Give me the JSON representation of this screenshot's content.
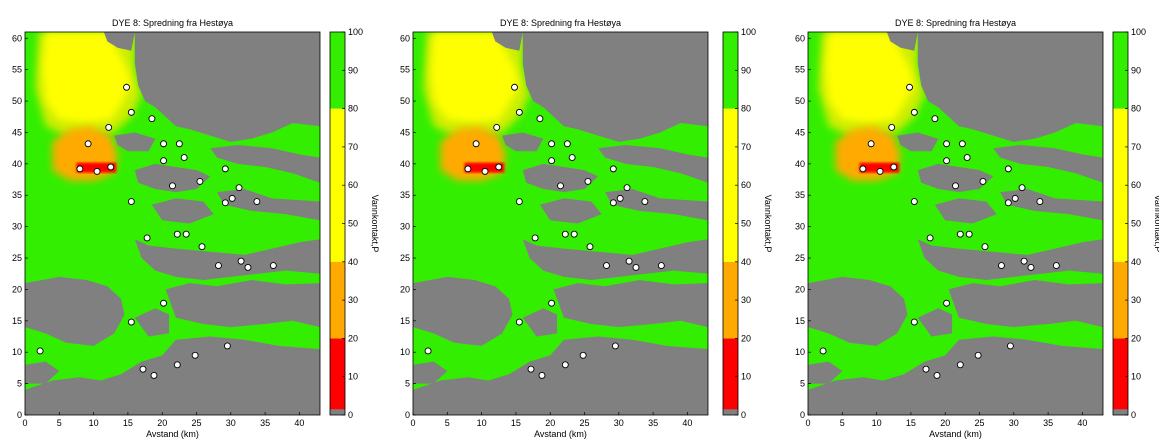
{
  "colors": {
    "land": "#808080",
    "green": "#33ee00",
    "yellow_green": "#ccee00",
    "yellow": "#ffff00",
    "orange": "#ffaa00",
    "red": "#ff0000",
    "station_fill": "#ffffff",
    "station_stroke": "#000000"
  },
  "chart_data": [
    {
      "type": "heatmap",
      "title": "DYE 8:  Spredning fra Hestøya",
      "xlabel": "Avstand (km)",
      "ylabel": "",
      "xlim": [
        0,
        43
      ],
      "ylim": [
        0,
        61
      ],
      "xticks": [
        "0",
        "5",
        "10",
        "15",
        "20",
        "25",
        "30",
        "35",
        "40"
      ],
      "yticks": [
        "0",
        "5",
        "10",
        "15",
        "20",
        "25",
        "30",
        "35",
        "40",
        "45",
        "50",
        "55",
        "60"
      ],
      "colorbar": {
        "label": "Vannkontakt,P",
        "range": [
          0,
          100
        ],
        "ticks": [
          "0",
          "10",
          "20",
          "30",
          "40",
          "50",
          "60",
          "70",
          "80",
          "90",
          "100"
        ],
        "bands": [
          {
            "from": 0,
            "to": 20,
            "color": "#ff0000"
          },
          {
            "from": 20,
            "to": 40,
            "color": "#ffaa00"
          },
          {
            "from": 40,
            "to": 80,
            "color": "#ffff00"
          },
          {
            "from": 80,
            "to": 100,
            "color": "#33ee00"
          }
        ]
      },
      "stations": [
        {
          "x": 14.8,
          "y": 52.2
        },
        {
          "x": 15.5,
          "y": 48.2
        },
        {
          "x": 18.5,
          "y": 47.2
        },
        {
          "x": 12.2,
          "y": 45.8
        },
        {
          "x": 9.2,
          "y": 43.2
        },
        {
          "x": 20.2,
          "y": 43.2
        },
        {
          "x": 22.5,
          "y": 43.2
        },
        {
          "x": 23.2,
          "y": 41.0
        },
        {
          "x": 20.2,
          "y": 40.5
        },
        {
          "x": 8.0,
          "y": 39.2
        },
        {
          "x": 10.5,
          "y": 38.8
        },
        {
          "x": 12.5,
          "y": 39.5
        },
        {
          "x": 29.2,
          "y": 39.2
        },
        {
          "x": 25.5,
          "y": 37.2
        },
        {
          "x": 21.5,
          "y": 36.5
        },
        {
          "x": 31.2,
          "y": 36.2
        },
        {
          "x": 15.5,
          "y": 34.0
        },
        {
          "x": 29.2,
          "y": 33.8
        },
        {
          "x": 30.2,
          "y": 34.5
        },
        {
          "x": 33.8,
          "y": 34.0
        },
        {
          "x": 22.2,
          "y": 28.8
        },
        {
          "x": 23.5,
          "y": 28.8
        },
        {
          "x": 17.8,
          "y": 28.2
        },
        {
          "x": 25.8,
          "y": 26.8
        },
        {
          "x": 31.5,
          "y": 24.5
        },
        {
          "x": 28.2,
          "y": 23.8
        },
        {
          "x": 32.5,
          "y": 23.5
        },
        {
          "x": 36.2,
          "y": 23.8
        },
        {
          "x": 20.2,
          "y": 17.8
        },
        {
          "x": 15.5,
          "y": 14.8
        },
        {
          "x": 29.5,
          "y": 11.0
        },
        {
          "x": 2.2,
          "y": 10.2
        },
        {
          "x": 24.8,
          "y": 9.5
        },
        {
          "x": 22.2,
          "y": 8.0
        },
        {
          "x": 17.2,
          "y": 7.3
        },
        {
          "x": 18.8,
          "y": 6.3
        }
      ]
    },
    {
      "type": "heatmap",
      "title": "DYE 8:  Spredning fra Hestøya",
      "xlabel": "Avstand (km)",
      "ylabel": "",
      "xlim": [
        0,
        43
      ],
      "ylim": [
        0,
        61
      ],
      "xticks": [
        "0",
        "5",
        "10",
        "15",
        "20",
        "25",
        "30",
        "35",
        "40"
      ],
      "yticks": [
        "0",
        "5",
        "10",
        "15",
        "20",
        "25",
        "30",
        "35",
        "40",
        "45",
        "50",
        "55",
        "60"
      ],
      "colorbar": {
        "label": "Vannkontakt,P",
        "range": [
          0,
          100
        ],
        "ticks": [
          "0",
          "10",
          "20",
          "30",
          "40",
          "50",
          "60",
          "70",
          "80",
          "90",
          "100"
        ],
        "bands": [
          {
            "from": 0,
            "to": 20,
            "color": "#ff0000"
          },
          {
            "from": 20,
            "to": 40,
            "color": "#ffaa00"
          },
          {
            "from": 40,
            "to": 80,
            "color": "#ffff00"
          },
          {
            "from": 80,
            "to": 100,
            "color": "#33ee00"
          }
        ]
      },
      "stations": [
        {
          "x": 14.8,
          "y": 52.2
        },
        {
          "x": 15.5,
          "y": 48.2
        },
        {
          "x": 18.5,
          "y": 47.2
        },
        {
          "x": 12.2,
          "y": 45.8
        },
        {
          "x": 9.2,
          "y": 43.2
        },
        {
          "x": 20.2,
          "y": 43.2
        },
        {
          "x": 22.5,
          "y": 43.2
        },
        {
          "x": 23.2,
          "y": 41.0
        },
        {
          "x": 20.2,
          "y": 40.5
        },
        {
          "x": 8.0,
          "y": 39.2
        },
        {
          "x": 10.5,
          "y": 38.8
        },
        {
          "x": 12.5,
          "y": 39.5
        },
        {
          "x": 29.2,
          "y": 39.2
        },
        {
          "x": 25.5,
          "y": 37.2
        },
        {
          "x": 21.5,
          "y": 36.5
        },
        {
          "x": 31.2,
          "y": 36.2
        },
        {
          "x": 15.5,
          "y": 34.0
        },
        {
          "x": 29.2,
          "y": 33.8
        },
        {
          "x": 30.2,
          "y": 34.5
        },
        {
          "x": 33.8,
          "y": 34.0
        },
        {
          "x": 22.2,
          "y": 28.8
        },
        {
          "x": 23.5,
          "y": 28.8
        },
        {
          "x": 17.8,
          "y": 28.2
        },
        {
          "x": 25.8,
          "y": 26.8
        },
        {
          "x": 31.5,
          "y": 24.5
        },
        {
          "x": 28.2,
          "y": 23.8
        },
        {
          "x": 32.5,
          "y": 23.5
        },
        {
          "x": 36.2,
          "y": 23.8
        },
        {
          "x": 20.2,
          "y": 17.8
        },
        {
          "x": 15.5,
          "y": 14.8
        },
        {
          "x": 29.5,
          "y": 11.0
        },
        {
          "x": 2.2,
          "y": 10.2
        },
        {
          "x": 24.8,
          "y": 9.5
        },
        {
          "x": 22.2,
          "y": 8.0
        },
        {
          "x": 17.2,
          "y": 7.3
        },
        {
          "x": 18.8,
          "y": 6.3
        }
      ]
    },
    {
      "type": "heatmap",
      "title": "DYE 8:  Spredning fra Hestøya",
      "xlabel": "Avstand (km)",
      "ylabel": "",
      "xlim": [
        0,
        43
      ],
      "ylim": [
        0,
        61
      ],
      "xticks": [
        "0",
        "5",
        "10",
        "15",
        "20",
        "25",
        "30",
        "35",
        "40"
      ],
      "yticks": [
        "0",
        "5",
        "10",
        "15",
        "20",
        "25",
        "30",
        "35",
        "40",
        "45",
        "50",
        "55",
        "60"
      ],
      "colorbar": {
        "label": "Vannkontakt,P",
        "range": [
          0,
          100
        ],
        "ticks": [
          "0",
          "10",
          "20",
          "30",
          "40",
          "50",
          "60",
          "70",
          "80",
          "90",
          "100"
        ],
        "bands": [
          {
            "from": 0,
            "to": 20,
            "color": "#ff0000"
          },
          {
            "from": 20,
            "to": 40,
            "color": "#ffaa00"
          },
          {
            "from": 40,
            "to": 80,
            "color": "#ffff00"
          },
          {
            "from": 80,
            "to": 100,
            "color": "#33ee00"
          }
        ]
      },
      "stations": [
        {
          "x": 14.8,
          "y": 52.2
        },
        {
          "x": 15.5,
          "y": 48.2
        },
        {
          "x": 18.5,
          "y": 47.2
        },
        {
          "x": 12.2,
          "y": 45.8
        },
        {
          "x": 9.2,
          "y": 43.2
        },
        {
          "x": 20.2,
          "y": 43.2
        },
        {
          "x": 22.5,
          "y": 43.2
        },
        {
          "x": 23.2,
          "y": 41.0
        },
        {
          "x": 20.2,
          "y": 40.5
        },
        {
          "x": 8.0,
          "y": 39.2
        },
        {
          "x": 10.5,
          "y": 38.8
        },
        {
          "x": 12.5,
          "y": 39.5
        },
        {
          "x": 29.2,
          "y": 39.2
        },
        {
          "x": 25.5,
          "y": 37.2
        },
        {
          "x": 21.5,
          "y": 36.5
        },
        {
          "x": 31.2,
          "y": 36.2
        },
        {
          "x": 15.5,
          "y": 34.0
        },
        {
          "x": 29.2,
          "y": 33.8
        },
        {
          "x": 30.2,
          "y": 34.5
        },
        {
          "x": 33.8,
          "y": 34.0
        },
        {
          "x": 22.2,
          "y": 28.8
        },
        {
          "x": 23.5,
          "y": 28.8
        },
        {
          "x": 17.8,
          "y": 28.2
        },
        {
          "x": 25.8,
          "y": 26.8
        },
        {
          "x": 31.5,
          "y": 24.5
        },
        {
          "x": 28.2,
          "y": 23.8
        },
        {
          "x": 32.5,
          "y": 23.5
        },
        {
          "x": 36.2,
          "y": 23.8
        },
        {
          "x": 20.2,
          "y": 17.8
        },
        {
          "x": 15.5,
          "y": 14.8
        },
        {
          "x": 29.5,
          "y": 11.0
        },
        {
          "x": 2.2,
          "y": 10.2
        },
        {
          "x": 24.8,
          "y": 9.5
        },
        {
          "x": 22.2,
          "y": 8.0
        },
        {
          "x": 17.2,
          "y": 7.3
        },
        {
          "x": 18.8,
          "y": 6.3
        }
      ]
    }
  ]
}
